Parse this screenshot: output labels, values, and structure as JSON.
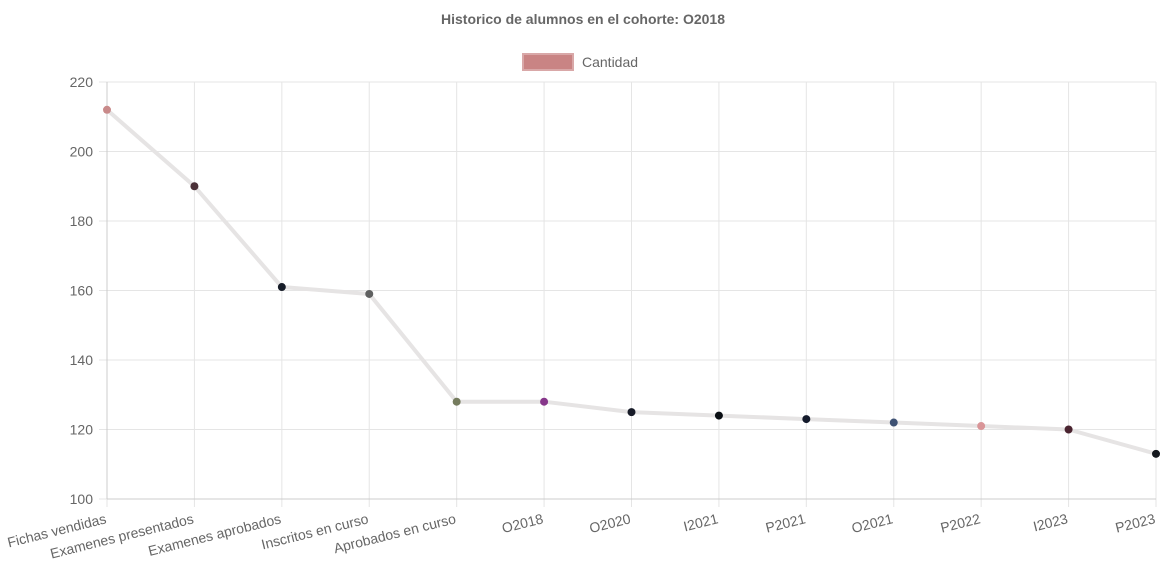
{
  "chart_data": {
    "type": "line",
    "title": "Historico de alumnos en el cohorte: O2018",
    "xlabel": "",
    "ylabel": "",
    "categories": [
      "Fichas vendidas",
      "Examenes presentados",
      "Examenes aprobados",
      "Inscritos en curso",
      "Aprobados en curso",
      "O2018",
      "O2020",
      "I2021",
      "P2021",
      "O2021",
      "P2022",
      "I2023",
      "P2023"
    ],
    "series": [
      {
        "name": "Cantidad",
        "values": [
          212,
          190,
          161,
          159,
          128,
          128,
          125,
          124,
          123,
          122,
          121,
          120,
          113
        ],
        "line_color": "#e6e4e4",
        "legend_fill": "#c98484",
        "legend_border": "#d9a8a8",
        "point_colors": [
          "#c98a8a",
          "#4a3037",
          "#161c28",
          "#5f6060",
          "#757c5e",
          "#86368a",
          "#171b28",
          "#0a0f14",
          "#141b2c",
          "#3f5274",
          "#d99598",
          "#4a2430",
          "#14171d"
        ]
      }
    ],
    "ylim": [
      100,
      220
    ],
    "yticks": [
      100,
      120,
      140,
      160,
      180,
      200,
      220
    ],
    "grid": true,
    "legend_position": "top"
  }
}
